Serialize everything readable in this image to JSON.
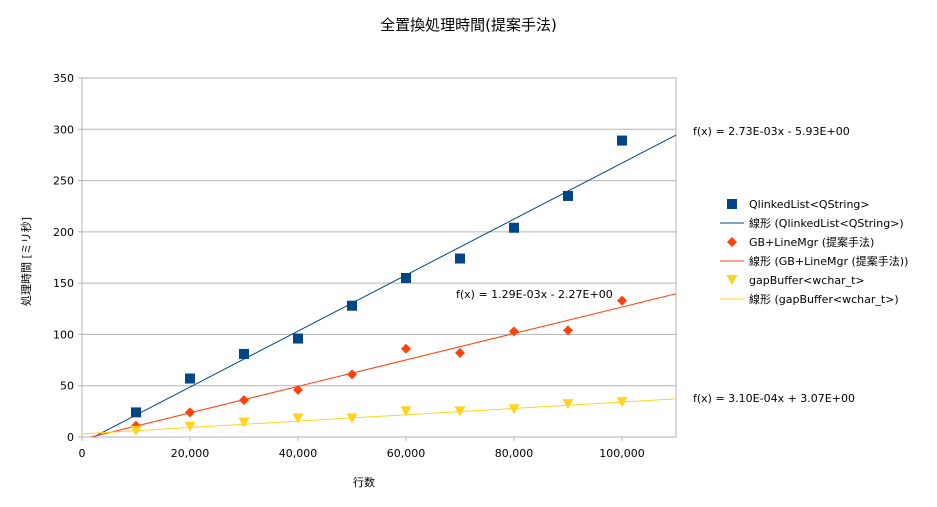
{
  "chart_data": {
    "type": "scatter",
    "title": "全置換処理時間(提案手法)",
    "xlabel": "行数",
    "ylabel": "処理時間 [ミリ秒]",
    "xlim": [
      0,
      110000
    ],
    "ylim": [
      0,
      350
    ],
    "xticks": [
      0,
      20000,
      40000,
      60000,
      80000,
      100000
    ],
    "xtick_labels": [
      "0",
      "20,000",
      "40,000",
      "60,000",
      "80,000",
      "100,000"
    ],
    "yticks": [
      0,
      50,
      100,
      150,
      200,
      250,
      300,
      350
    ],
    "ytick_labels": [
      "0",
      "50",
      "100",
      "150",
      "200",
      "250",
      "300",
      "350"
    ],
    "grid": "horizontal",
    "legend_position": "right",
    "series": [
      {
        "name": "QlinkedList<QString>",
        "trend_name": "線形 (QlinkedList<QString>)",
        "marker": "square",
        "color": "#004586",
        "x": [
          10000,
          20000,
          30000,
          40000,
          50000,
          60000,
          70000,
          80000,
          90000,
          100000
        ],
        "y": [
          24,
          57,
          81,
          96,
          128,
          155,
          174,
          204,
          235,
          289
        ],
        "trend": {
          "slope": 0.00273,
          "intercept": -5.93
        },
        "equation": "f(x) = 2.73E-03x - 5.93E+00"
      },
      {
        "name": "GB+LineMgr (提案手法)",
        "trend_name": "線形 (GB+LineMgr (提案手法))",
        "marker": "diamond",
        "color": "#ff420e",
        "x": [
          10000,
          20000,
          30000,
          40000,
          50000,
          60000,
          70000,
          80000,
          90000,
          100000
        ],
        "y": [
          11,
          24,
          36,
          46,
          61,
          86,
          82,
          103,
          104,
          133
        ],
        "trend": {
          "slope": 0.00129,
          "intercept": -2.27
        },
        "equation": "f(x) = 1.29E-03x - 2.27E+00"
      },
      {
        "name": "gapBuffer<wchar_t>",
        "trend_name": "線形 (gapBuffer<wchar_t>)",
        "marker": "triangle-down",
        "color": "#ffd320",
        "x": [
          10000,
          20000,
          30000,
          40000,
          50000,
          60000,
          70000,
          80000,
          90000,
          100000
        ],
        "y": [
          6,
          10,
          14,
          18,
          18,
          25,
          25,
          27,
          32,
          34
        ],
        "trend": {
          "slope": 0.00031,
          "intercept": 3.07
        },
        "equation": "f(x) = 3.10E-04x + 3.07E+00"
      }
    ]
  }
}
